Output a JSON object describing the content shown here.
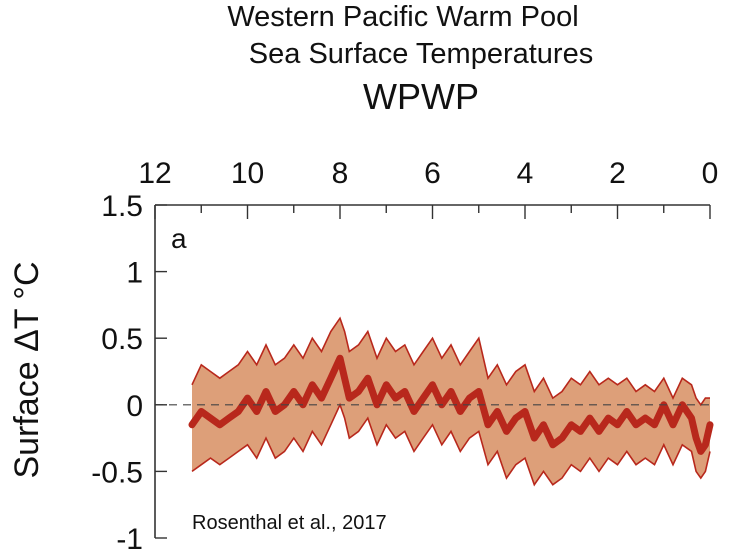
{
  "chart_data": {
    "type": "area",
    "title_lines": [
      "Western Pacific Warm Pool",
      "Sea Surface Temperatures",
      "WPWP"
    ],
    "ylabel": "Surface ΔT °C",
    "xlabel": "",
    "panel_label": "a",
    "citation": "Rosenthal et al., 2017",
    "x_ticks": [
      12,
      10,
      8,
      6,
      4,
      2,
      0
    ],
    "y_ticks": [
      1.5,
      1,
      0.5,
      0,
      -0.5,
      -1
    ],
    "x_tick_labels": [
      "12",
      "10",
      "8",
      "6",
      "4",
      "2",
      "0"
    ],
    "y_tick_labels": [
      "1.5",
      "1",
      "0.5",
      "0",
      "-0.5",
      "-1"
    ],
    "xlim": [
      12,
      0
    ],
    "ylim": [
      -1,
      1.5
    ],
    "x_reversed": true,
    "x_axis_position": "top",
    "zero_reference": "dashed",
    "colors": {
      "band": "#d9956a",
      "band_edge": "#b8281c",
      "line": "#b8281c"
    },
    "series": [
      {
        "role": "mean",
        "x": [
          11.2,
          11.0,
          10.8,
          10.6,
          10.4,
          10.2,
          10.0,
          9.8,
          9.6,
          9.4,
          9.2,
          9.0,
          8.8,
          8.6,
          8.4,
          8.2,
          8.0,
          7.9,
          7.8,
          7.6,
          7.4,
          7.2,
          7.0,
          6.8,
          6.6,
          6.4,
          6.2,
          6.0,
          5.8,
          5.6,
          5.4,
          5.2,
          5.0,
          4.8,
          4.6,
          4.4,
          4.2,
          4.0,
          3.8,
          3.6,
          3.4,
          3.2,
          3.0,
          2.8,
          2.6,
          2.4,
          2.2,
          2.0,
          1.8,
          1.6,
          1.4,
          1.2,
          1.0,
          0.8,
          0.6,
          0.4,
          0.3,
          0.2,
          0.1,
          0.0
        ],
        "y": [
          -0.15,
          -0.05,
          -0.1,
          -0.15,
          -0.1,
          -0.05,
          0.05,
          -0.05,
          0.1,
          -0.05,
          0.0,
          0.1,
          0.0,
          0.15,
          0.05,
          0.2,
          0.35,
          0.2,
          0.05,
          0.1,
          0.2,
          0.0,
          0.15,
          0.05,
          0.1,
          -0.05,
          0.05,
          0.15,
          0.0,
          0.1,
          -0.05,
          0.05,
          0.1,
          -0.15,
          -0.05,
          -0.2,
          -0.1,
          -0.05,
          -0.25,
          -0.15,
          -0.3,
          -0.25,
          -0.15,
          -0.2,
          -0.1,
          -0.2,
          -0.1,
          -0.15,
          -0.05,
          -0.15,
          -0.1,
          -0.15,
          0.0,
          -0.15,
          0.0,
          -0.1,
          -0.25,
          -0.35,
          -0.3,
          -0.15
        ]
      },
      {
        "role": "upper",
        "x": [
          11.2,
          11.0,
          10.8,
          10.6,
          10.4,
          10.2,
          10.0,
          9.8,
          9.6,
          9.4,
          9.2,
          9.0,
          8.8,
          8.6,
          8.4,
          8.2,
          8.0,
          7.9,
          7.8,
          7.6,
          7.4,
          7.2,
          7.0,
          6.8,
          6.6,
          6.4,
          6.2,
          6.0,
          5.8,
          5.6,
          5.4,
          5.2,
          5.0,
          4.8,
          4.6,
          4.4,
          4.2,
          4.0,
          3.8,
          3.6,
          3.4,
          3.2,
          3.0,
          2.8,
          2.6,
          2.4,
          2.2,
          2.0,
          1.8,
          1.6,
          1.4,
          1.2,
          1.0,
          0.8,
          0.6,
          0.4,
          0.3,
          0.2,
          0.1,
          0.0
        ],
        "y": [
          0.15,
          0.3,
          0.25,
          0.2,
          0.25,
          0.3,
          0.4,
          0.3,
          0.45,
          0.3,
          0.35,
          0.45,
          0.35,
          0.5,
          0.4,
          0.55,
          0.65,
          0.55,
          0.4,
          0.45,
          0.55,
          0.35,
          0.5,
          0.4,
          0.45,
          0.3,
          0.4,
          0.5,
          0.35,
          0.45,
          0.3,
          0.4,
          0.5,
          0.2,
          0.3,
          0.15,
          0.25,
          0.3,
          0.1,
          0.2,
          0.05,
          0.1,
          0.2,
          0.15,
          0.25,
          0.15,
          0.2,
          0.15,
          0.2,
          0.1,
          0.15,
          0.1,
          0.2,
          0.05,
          0.2,
          0.15,
          0.05,
          0.0,
          0.05,
          0.05
        ]
      },
      {
        "role": "lower",
        "x": [
          11.2,
          11.0,
          10.8,
          10.6,
          10.4,
          10.2,
          10.0,
          9.8,
          9.6,
          9.4,
          9.2,
          9.0,
          8.8,
          8.6,
          8.4,
          8.2,
          8.0,
          7.9,
          7.8,
          7.6,
          7.4,
          7.2,
          7.0,
          6.8,
          6.6,
          6.4,
          6.2,
          6.0,
          5.8,
          5.6,
          5.4,
          5.2,
          5.0,
          4.8,
          4.6,
          4.4,
          4.2,
          4.0,
          3.8,
          3.6,
          3.4,
          3.2,
          3.0,
          2.8,
          2.6,
          2.4,
          2.2,
          2.0,
          1.8,
          1.6,
          1.4,
          1.2,
          1.0,
          0.8,
          0.6,
          0.4,
          0.3,
          0.2,
          0.1,
          0.0
        ],
        "y": [
          -0.5,
          -0.45,
          -0.4,
          -0.45,
          -0.4,
          -0.35,
          -0.3,
          -0.4,
          -0.25,
          -0.4,
          -0.35,
          -0.25,
          -0.35,
          -0.2,
          -0.3,
          -0.15,
          0.0,
          -0.1,
          -0.25,
          -0.2,
          -0.1,
          -0.3,
          -0.15,
          -0.25,
          -0.2,
          -0.35,
          -0.25,
          -0.15,
          -0.3,
          -0.2,
          -0.35,
          -0.25,
          -0.2,
          -0.45,
          -0.35,
          -0.55,
          -0.45,
          -0.4,
          -0.6,
          -0.5,
          -0.6,
          -0.55,
          -0.45,
          -0.5,
          -0.4,
          -0.5,
          -0.4,
          -0.45,
          -0.35,
          -0.45,
          -0.4,
          -0.45,
          -0.3,
          -0.45,
          -0.3,
          -0.35,
          -0.5,
          -0.55,
          -0.5,
          -0.35
        ]
      }
    ]
  }
}
